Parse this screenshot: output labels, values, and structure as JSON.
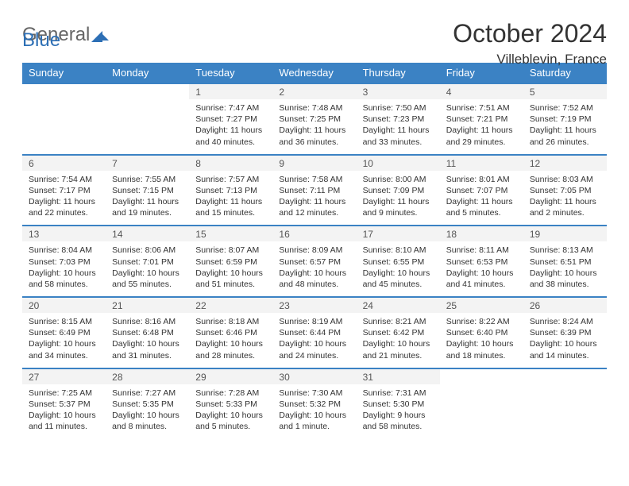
{
  "logo": {
    "text1": "General",
    "text2": "Blue"
  },
  "title": "October 2024",
  "location": "Villeblevin, France",
  "colors": {
    "header_bg": "#3b82c4",
    "header_text": "#ffffff",
    "daynum_bg": "#f3f3f3",
    "border": "#3b82c4",
    "text": "#333333"
  },
  "weekdays": [
    "Sunday",
    "Monday",
    "Tuesday",
    "Wednesday",
    "Thursday",
    "Friday",
    "Saturday"
  ],
  "weeks": [
    [
      null,
      null,
      {
        "n": "1",
        "sr": "Sunrise: 7:47 AM",
        "ss": "Sunset: 7:27 PM",
        "dl": "Daylight: 11 hours and 40 minutes."
      },
      {
        "n": "2",
        "sr": "Sunrise: 7:48 AM",
        "ss": "Sunset: 7:25 PM",
        "dl": "Daylight: 11 hours and 36 minutes."
      },
      {
        "n": "3",
        "sr": "Sunrise: 7:50 AM",
        "ss": "Sunset: 7:23 PM",
        "dl": "Daylight: 11 hours and 33 minutes."
      },
      {
        "n": "4",
        "sr": "Sunrise: 7:51 AM",
        "ss": "Sunset: 7:21 PM",
        "dl": "Daylight: 11 hours and 29 minutes."
      },
      {
        "n": "5",
        "sr": "Sunrise: 7:52 AM",
        "ss": "Sunset: 7:19 PM",
        "dl": "Daylight: 11 hours and 26 minutes."
      }
    ],
    [
      {
        "n": "6",
        "sr": "Sunrise: 7:54 AM",
        "ss": "Sunset: 7:17 PM",
        "dl": "Daylight: 11 hours and 22 minutes."
      },
      {
        "n": "7",
        "sr": "Sunrise: 7:55 AM",
        "ss": "Sunset: 7:15 PM",
        "dl": "Daylight: 11 hours and 19 minutes."
      },
      {
        "n": "8",
        "sr": "Sunrise: 7:57 AM",
        "ss": "Sunset: 7:13 PM",
        "dl": "Daylight: 11 hours and 15 minutes."
      },
      {
        "n": "9",
        "sr": "Sunrise: 7:58 AM",
        "ss": "Sunset: 7:11 PM",
        "dl": "Daylight: 11 hours and 12 minutes."
      },
      {
        "n": "10",
        "sr": "Sunrise: 8:00 AM",
        "ss": "Sunset: 7:09 PM",
        "dl": "Daylight: 11 hours and 9 minutes."
      },
      {
        "n": "11",
        "sr": "Sunrise: 8:01 AM",
        "ss": "Sunset: 7:07 PM",
        "dl": "Daylight: 11 hours and 5 minutes."
      },
      {
        "n": "12",
        "sr": "Sunrise: 8:03 AM",
        "ss": "Sunset: 7:05 PM",
        "dl": "Daylight: 11 hours and 2 minutes."
      }
    ],
    [
      {
        "n": "13",
        "sr": "Sunrise: 8:04 AM",
        "ss": "Sunset: 7:03 PM",
        "dl": "Daylight: 10 hours and 58 minutes."
      },
      {
        "n": "14",
        "sr": "Sunrise: 8:06 AM",
        "ss": "Sunset: 7:01 PM",
        "dl": "Daylight: 10 hours and 55 minutes."
      },
      {
        "n": "15",
        "sr": "Sunrise: 8:07 AM",
        "ss": "Sunset: 6:59 PM",
        "dl": "Daylight: 10 hours and 51 minutes."
      },
      {
        "n": "16",
        "sr": "Sunrise: 8:09 AM",
        "ss": "Sunset: 6:57 PM",
        "dl": "Daylight: 10 hours and 48 minutes."
      },
      {
        "n": "17",
        "sr": "Sunrise: 8:10 AM",
        "ss": "Sunset: 6:55 PM",
        "dl": "Daylight: 10 hours and 45 minutes."
      },
      {
        "n": "18",
        "sr": "Sunrise: 8:11 AM",
        "ss": "Sunset: 6:53 PM",
        "dl": "Daylight: 10 hours and 41 minutes."
      },
      {
        "n": "19",
        "sr": "Sunrise: 8:13 AM",
        "ss": "Sunset: 6:51 PM",
        "dl": "Daylight: 10 hours and 38 minutes."
      }
    ],
    [
      {
        "n": "20",
        "sr": "Sunrise: 8:15 AM",
        "ss": "Sunset: 6:49 PM",
        "dl": "Daylight: 10 hours and 34 minutes."
      },
      {
        "n": "21",
        "sr": "Sunrise: 8:16 AM",
        "ss": "Sunset: 6:48 PM",
        "dl": "Daylight: 10 hours and 31 minutes."
      },
      {
        "n": "22",
        "sr": "Sunrise: 8:18 AM",
        "ss": "Sunset: 6:46 PM",
        "dl": "Daylight: 10 hours and 28 minutes."
      },
      {
        "n": "23",
        "sr": "Sunrise: 8:19 AM",
        "ss": "Sunset: 6:44 PM",
        "dl": "Daylight: 10 hours and 24 minutes."
      },
      {
        "n": "24",
        "sr": "Sunrise: 8:21 AM",
        "ss": "Sunset: 6:42 PM",
        "dl": "Daylight: 10 hours and 21 minutes."
      },
      {
        "n": "25",
        "sr": "Sunrise: 8:22 AM",
        "ss": "Sunset: 6:40 PM",
        "dl": "Daylight: 10 hours and 18 minutes."
      },
      {
        "n": "26",
        "sr": "Sunrise: 8:24 AM",
        "ss": "Sunset: 6:39 PM",
        "dl": "Daylight: 10 hours and 14 minutes."
      }
    ],
    [
      {
        "n": "27",
        "sr": "Sunrise: 7:25 AM",
        "ss": "Sunset: 5:37 PM",
        "dl": "Daylight: 10 hours and 11 minutes."
      },
      {
        "n": "28",
        "sr": "Sunrise: 7:27 AM",
        "ss": "Sunset: 5:35 PM",
        "dl": "Daylight: 10 hours and 8 minutes."
      },
      {
        "n": "29",
        "sr": "Sunrise: 7:28 AM",
        "ss": "Sunset: 5:33 PM",
        "dl": "Daylight: 10 hours and 5 minutes."
      },
      {
        "n": "30",
        "sr": "Sunrise: 7:30 AM",
        "ss": "Sunset: 5:32 PM",
        "dl": "Daylight: 10 hours and 1 minute."
      },
      {
        "n": "31",
        "sr": "Sunrise: 7:31 AM",
        "ss": "Sunset: 5:30 PM",
        "dl": "Daylight: 9 hours and 58 minutes."
      },
      null,
      null
    ]
  ]
}
